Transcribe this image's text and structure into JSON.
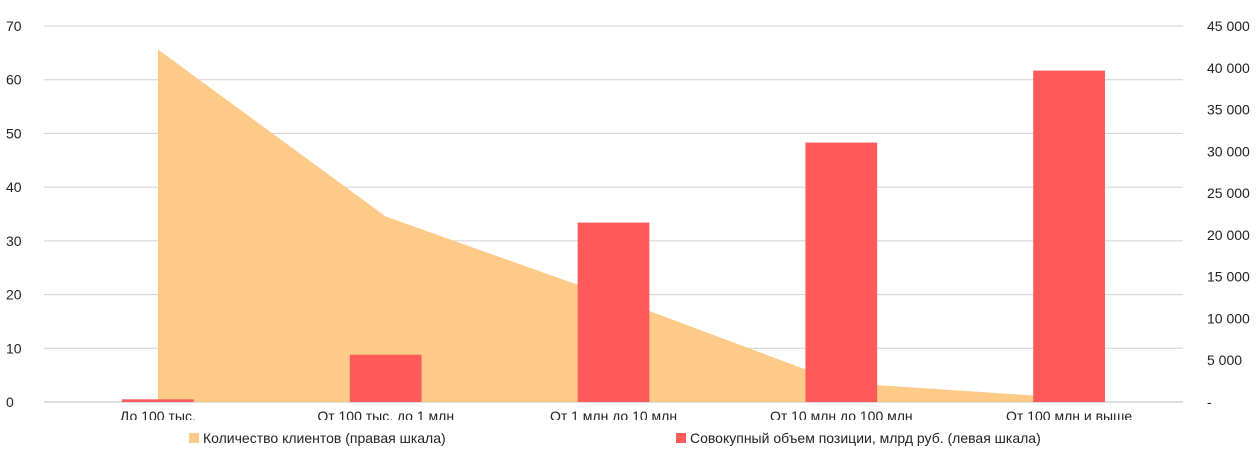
{
  "chart_data": {
    "type": "bar",
    "categories": [
      "До 100 тыс.",
      "От 100 тыс. до 1 млн",
      "От 1 млн до 10 млн",
      "От 10 млн до 100 млн",
      "От 100 млн и выше"
    ],
    "series": [
      {
        "name": "Количество клиентов (правая шкала)",
        "type": "area",
        "axis": "right",
        "color": "#FDCB87",
        "values": [
          42200,
          22200,
          12500,
          2300,
          500
        ]
      },
      {
        "name": "Совокупный объем позиции, млрд руб. (левая шкала)",
        "type": "bar",
        "axis": "left",
        "color": "#FF5A5A",
        "values": [
          0.5,
          8.8,
          33.4,
          48.3,
          61.7
        ]
      }
    ],
    "y_left": {
      "ylim": [
        0,
        70
      ],
      "ticks": [
        "0",
        "10",
        "20",
        "30",
        "40",
        "50",
        "60",
        "70"
      ]
    },
    "y_right": {
      "ylim": [
        0,
        45000
      ],
      "ticks": [
        "-",
        "5 000",
        "10 000",
        "15 000",
        "20 000",
        "25 000",
        "30 000",
        "35 000",
        "40 000",
        "45 000"
      ]
    },
    "grid": true,
    "legend_position": "bottom"
  }
}
